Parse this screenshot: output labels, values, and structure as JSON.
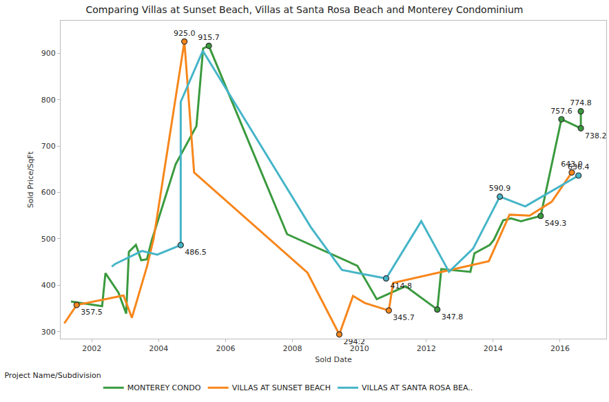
{
  "chart_data": {
    "type": "line",
    "title": "Comparing Villas at Sunset Beach, Villas at Santa Rosa Beach and Monterey Condominium",
    "x_label": "Sold Date",
    "y_label": "Sold Price/SqFt",
    "legend_title": "Project Name/Subdivision",
    "legend": "bottom",
    "grid": false,
    "data_labels": true,
    "marker": "circle",
    "line_style": "solid",
    "xlim": [
      2001.07,
      2017.38
    ],
    "xticks": [
      2002,
      2004,
      2006,
      2008,
      2010,
      2012,
      2014,
      2016
    ],
    "ylim": [
      285,
      970
    ],
    "yticks": [
      300,
      400,
      500,
      600,
      700,
      800,
      900
    ],
    "series": [
      {
        "name": "MONTEREY CONDO",
        "color": "#3a9a3e",
        "x": [
          2001.38,
          2002.31,
          2002.41,
          2002.8,
          2003.03,
          2003.11,
          2003.32,
          2003.48,
          2003.65,
          2003.79,
          2004.51,
          2005.13,
          2005.33,
          2005.5,
          2007.84,
          2009.94,
          2010.52,
          2011.38,
          2012.33,
          2012.45,
          2013.32,
          2013.44,
          2013.9,
          2014.02,
          2014.3,
          2014.54,
          2014.83,
          2015.42,
          2016.04,
          2016.62,
          2016.62
        ],
        "values": [
          365,
          355,
          426,
          384,
          339,
          472,
          487,
          454,
          456,
          496,
          661,
          743,
          910,
          915.7,
          510,
          442,
          370,
          398,
          347.8,
          435,
          429,
          469,
          487,
          498,
          540,
          544,
          538,
          549.3,
          757.6,
          738.2,
          774.8
        ],
        "value_labels": [
          null,
          null,
          null,
          null,
          null,
          null,
          null,
          null,
          null,
          null,
          null,
          null,
          null,
          "915.7",
          null,
          null,
          null,
          null,
          "347.8",
          null,
          null,
          null,
          null,
          null,
          null,
          null,
          null,
          "549.3",
          "757.6",
          "738.2",
          "774.8"
        ]
      },
      {
        "name": "VILLAS AT SUNSET BEACH",
        "color": "#f7861b",
        "x": [
          2001.18,
          2001.55,
          2002.95,
          2003.2,
          2003.65,
          2003.85,
          2004.77,
          2005.06,
          2008.45,
          2009.4,
          2009.81,
          2010.16,
          2010.88,
          2011.01,
          2013.87,
          2014.49,
          2015.09,
          2015.75,
          2016.35
        ],
        "values": [
          318,
          357.5,
          378,
          330,
          440,
          500,
          925.0,
          643,
          427,
          294.2,
          377,
          362,
          345.7,
          405,
          452,
          552,
          550,
          580,
          643.0
        ],
        "value_labels": [
          null,
          "357.5",
          null,
          null,
          null,
          null,
          "925.0",
          null,
          null,
          "294.2",
          null,
          null,
          "345.7",
          null,
          null,
          null,
          null,
          null,
          "643.0"
        ]
      },
      {
        "name": "VILLAS AT SANTA ROSA BEA..",
        "color": "#45b5c8",
        "x": [
          2002.6,
          2002.7,
          2003.5,
          2003.96,
          2004.66,
          2004.66,
          2005.32,
          2008.55,
          2009.48,
          2010.8,
          2011.85,
          2012.68,
          2013.4,
          2014.2,
          2014.96,
          2016.55
        ],
        "values": [
          440,
          446,
          474,
          466,
          486.5,
          795,
          905,
          525,
          433,
          414.8,
          538,
          429,
          479,
          590.9,
          570,
          636.4
        ],
        "value_labels": [
          null,
          null,
          null,
          null,
          "486.5",
          null,
          null,
          null,
          null,
          "414.8",
          null,
          null,
          null,
          "590.9",
          null,
          "636.4"
        ]
      }
    ]
  }
}
